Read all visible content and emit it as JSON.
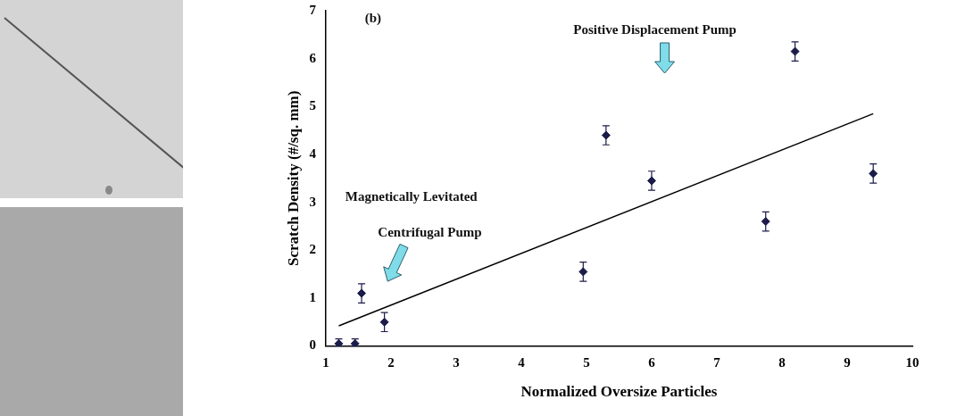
{
  "chart_data": {
    "type": "scatter",
    "panel_label": "(b)",
    "x_label": "Normalized Oversize Particles",
    "y_label": "Scratch Density (#/sq. mm)",
    "x": [
      1.2,
      1.45,
      1.55,
      1.9,
      4.95,
      5.3,
      6.0,
      7.75,
      8.2,
      9.4
    ],
    "values": [
      0.05,
      0.05,
      1.1,
      0.5,
      1.55,
      4.4,
      3.45,
      2.6,
      6.15,
      3.6
    ],
    "errors": [
      0.1,
      0.1,
      0.2,
      0.2,
      0.2,
      0.2,
      0.2,
      0.2,
      0.2,
      0.2
    ],
    "color": "#1c1c4a",
    "marker": "diamond",
    "trend_line": {
      "x": [
        1.2,
        9.4
      ],
      "values": [
        0.42,
        4.85
      ],
      "color": "#000000",
      "line_style": "solid"
    },
    "annotations": [
      "Positive Displacement Pump",
      "Magnetically Levitated",
      "Centrifugal Pump"
    ],
    "xlim": [
      1,
      10
    ],
    "xticks": [
      1,
      2,
      3,
      4,
      5,
      6,
      7,
      8,
      9,
      10
    ],
    "ylim": [
      0,
      7
    ],
    "yticks": [
      0,
      1,
      2,
      3,
      4,
      5,
      6,
      7
    ],
    "grid": false
  }
}
